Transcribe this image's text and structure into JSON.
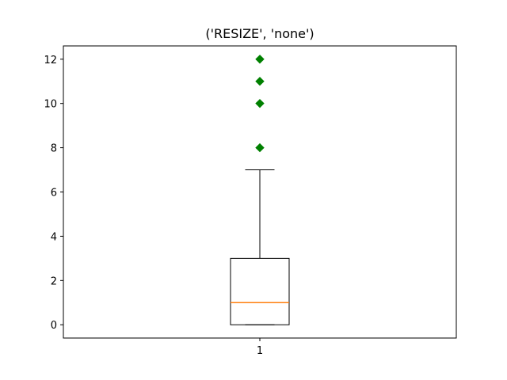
{
  "chart_data": {
    "type": "box",
    "title": "('RESIZE', 'none')",
    "xlabel": "",
    "ylabel": "",
    "categories": [
      "1"
    ],
    "ylim": [
      -0.6,
      12.6
    ],
    "yticks": [
      0,
      2,
      4,
      6,
      8,
      10,
      12
    ],
    "grid": false,
    "boxes": [
      {
        "category": "1",
        "whisker_low": 0,
        "q1": 0,
        "median": 1,
        "q3": 3,
        "whisker_high": 7,
        "outliers": [
          8,
          10,
          11,
          12
        ]
      }
    ],
    "colors": {
      "box": "#000000",
      "median": "#ff7f0e",
      "outlier": "#008000"
    },
    "outlier_marker": "diamond"
  }
}
